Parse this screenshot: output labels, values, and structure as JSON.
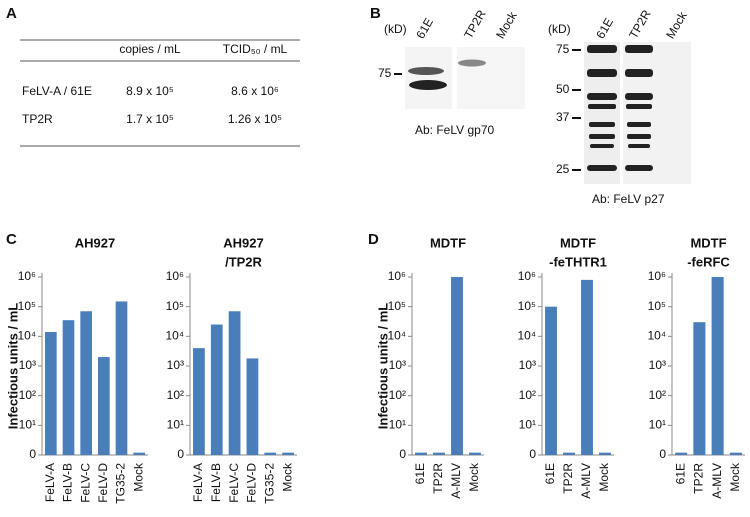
{
  "panel_labels": [
    "A",
    "B",
    "C",
    "D"
  ],
  "table": {
    "columns": [
      "copies / mL",
      "TCID₅₀ / mL"
    ],
    "rows": [
      [
        "FeLV-A / 61E",
        "8.9 x 10⁵",
        "8.6 x 10⁶"
      ],
      [
        "TP2R",
        "1.7 x 10⁵",
        "1.26 x 10⁵"
      ]
    ]
  },
  "blots": [
    {
      "unit": "(kD)",
      "lanes": [
        "61E",
        "TP2R",
        "Mock"
      ],
      "markers": [
        75
      ],
      "antibody": "Ab: FeLV gp70"
    },
    {
      "unit": "(kD)",
      "lanes": [
        "61E",
        "TP2R",
        "Mock"
      ],
      "markers": [
        75,
        50,
        37,
        25
      ],
      "antibody": "Ab: FeLV p27"
    }
  ],
  "chart_data": [
    {
      "type": "bar",
      "title": [
        "AH927"
      ],
      "ylabel": "Infectious units / mL",
      "log": true,
      "color": "#4a7ebb",
      "categories": [
        "FeLV-A",
        "FeLV-B",
        "FeLV-C",
        "FeLV-D",
        "TG35-2",
        "Mock"
      ],
      "values": [
        14000,
        35000,
        70000,
        2000,
        150000,
        1.2
      ],
      "ylim": [
        1,
        1000000
      ],
      "yticks": [
        {
          "value": 1,
          "label": "0"
        },
        {
          "value": 10,
          "label": "10¹"
        },
        {
          "value": 100,
          "label": "10²"
        },
        {
          "value": 1000,
          "label": "10³"
        },
        {
          "value": 10000,
          "label": "10⁴"
        },
        {
          "value": 100000,
          "label": "10⁵"
        },
        {
          "value": 1000000,
          "label": "10⁶"
        }
      ]
    },
    {
      "type": "bar",
      "title": [
        "AH927",
        "/TP2R"
      ],
      "log": true,
      "color": "#4a7ebb",
      "categories": [
        "FeLV-A",
        "FeLV-B",
        "FeLV-C",
        "FeLV-D",
        "TG35-2",
        "Mock"
      ],
      "values": [
        4000,
        25000,
        70000,
        1800,
        1.2,
        1.2
      ],
      "ylim": [
        1,
        1000000
      ],
      "yticks": [
        {
          "value": 1,
          "label": "0"
        },
        {
          "value": 10,
          "label": "10¹"
        },
        {
          "value": 100,
          "label": "10²"
        },
        {
          "value": 1000,
          "label": "10³"
        },
        {
          "value": 10000,
          "label": "10⁴"
        },
        {
          "value": 100000,
          "label": "10⁵"
        },
        {
          "value": 1000000,
          "label": "10⁶"
        }
      ]
    },
    {
      "type": "bar",
      "title": [
        "MDTF"
      ],
      "ylabel": "Infectious units / mL",
      "log": true,
      "color": "#4a7ebb",
      "categories": [
        "61E",
        "TP2R",
        "A-MLV",
        "Mock"
      ],
      "values": [
        1.2,
        1.2,
        1000000,
        1.2
      ],
      "ylim": [
        1,
        1000000
      ],
      "yticks": [
        {
          "value": 1,
          "label": "0"
        },
        {
          "value": 10,
          "label": "10¹"
        },
        {
          "value": 100,
          "label": "10²"
        },
        {
          "value": 1000,
          "label": "10³"
        },
        {
          "value": 10000,
          "label": "10⁴"
        },
        {
          "value": 100000,
          "label": "10⁵"
        },
        {
          "value": 1000000,
          "label": "10⁶"
        }
      ]
    },
    {
      "type": "bar",
      "title": [
        "MDTF",
        "-feTHTR1"
      ],
      "log": true,
      "color": "#4a7ebb",
      "categories": [
        "61E",
        "TP2R",
        "A-MLV",
        "Mock"
      ],
      "values": [
        100000,
        1.2,
        800000,
        1.2
      ],
      "ylim": [
        1,
        1000000
      ],
      "yticks": [
        {
          "value": 1,
          "label": "0"
        },
        {
          "value": 10,
          "label": "10¹"
        },
        {
          "value": 100,
          "label": "10²"
        },
        {
          "value": 1000,
          "label": "10³"
        },
        {
          "value": 10000,
          "label": "10⁴"
        },
        {
          "value": 100000,
          "label": "10⁵"
        },
        {
          "value": 1000000,
          "label": "10⁶"
        }
      ]
    },
    {
      "type": "bar",
      "title": [
        "MDTF",
        "-feRFC"
      ],
      "log": true,
      "color": "#4a7ebb",
      "categories": [
        "61E",
        "TP2R",
        "A-MLV",
        "Mock"
      ],
      "values": [
        1.2,
        30000,
        1000000,
        1.2
      ],
      "ylim": [
        1,
        1000000
      ],
      "yticks": [
        {
          "value": 1,
          "label": "0"
        },
        {
          "value": 10,
          "label": "10¹"
        },
        {
          "value": 100,
          "label": "10²"
        },
        {
          "value": 1000,
          "label": "10³"
        },
        {
          "value": 10000,
          "label": "10⁴"
        },
        {
          "value": 100000,
          "label": "10⁵"
        },
        {
          "value": 1000000,
          "label": "10⁶"
        }
      ]
    }
  ]
}
